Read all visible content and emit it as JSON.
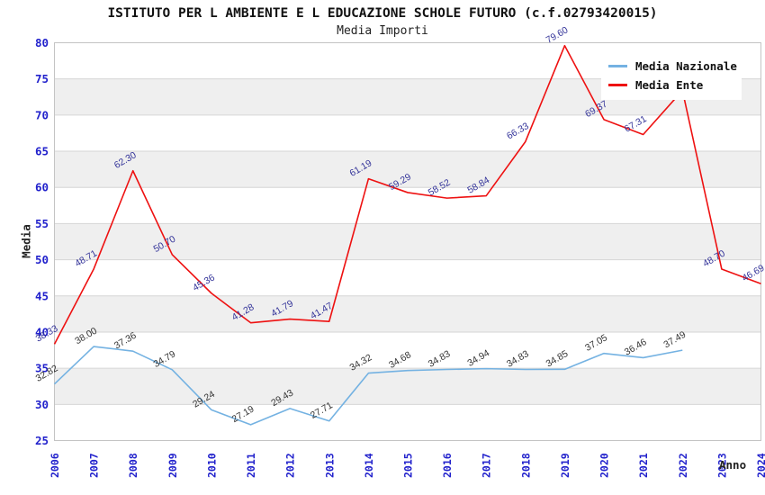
{
  "chart_data": {
    "type": "line",
    "title": "ISTITUTO PER L AMBIENTE E L EDUCAZIONE SCHOLE FUTURO (c.f.02793420015)",
    "subtitle": "Media Importi",
    "xlabel": "Anno",
    "ylabel": "Media",
    "ylim": [
      25,
      80
    ],
    "ytick_step": 5,
    "grid": {
      "bands": true,
      "band_color": "#efefef",
      "line_color": "#d6d6d6",
      "border_color": "#c4c4c4",
      "tick_color": "#2222cc"
    },
    "legend": {
      "position": "top-right",
      "background": "#ffffff"
    },
    "categories": [
      "2006",
      "2007",
      "2008",
      "2009",
      "2010",
      "2011",
      "2012",
      "2013",
      "2014",
      "2015",
      "2016",
      "2017",
      "2018",
      "2019",
      "2020",
      "2021",
      "2022",
      "2023",
      "2024"
    ],
    "series": [
      {
        "name": "Media Nazionale",
        "color": "#74b2e2",
        "label_color": "#333333",
        "values": [
          32.82,
          38.0,
          37.36,
          34.79,
          29.24,
          27.19,
          29.43,
          27.71,
          34.32,
          34.68,
          34.83,
          34.94,
          34.83,
          34.85,
          37.05,
          36.46,
          37.49
        ],
        "labels": [
          "32.82",
          "38.00",
          "37.36",
          "34.79",
          "29.24",
          "27.19",
          "29.43",
          "27.71",
          "34.32",
          "34.68",
          "34.83",
          "34.94",
          "34.83",
          "34.85",
          "37.05",
          "36.46",
          "37.49"
        ]
      },
      {
        "name": "Media Ente",
        "color": "#ee1111",
        "label_color": "#333399",
        "values": [
          38.33,
          48.71,
          62.3,
          50.7,
          45.36,
          41.28,
          41.79,
          41.47,
          61.19,
          59.29,
          58.52,
          58.84,
          66.33,
          79.6,
          69.37,
          67.31,
          73.4,
          48.7,
          46.69
        ],
        "labels": [
          "38.33",
          "48.71",
          "62.30",
          "50.70",
          "45.36",
          "41.28",
          "41.79",
          "41.47",
          "61.19",
          "59.29",
          "58.52",
          "58.84",
          "66.33",
          "79.60",
          "69.37",
          "67.31",
          null,
          "48.70",
          "46.69"
        ]
      }
    ]
  }
}
